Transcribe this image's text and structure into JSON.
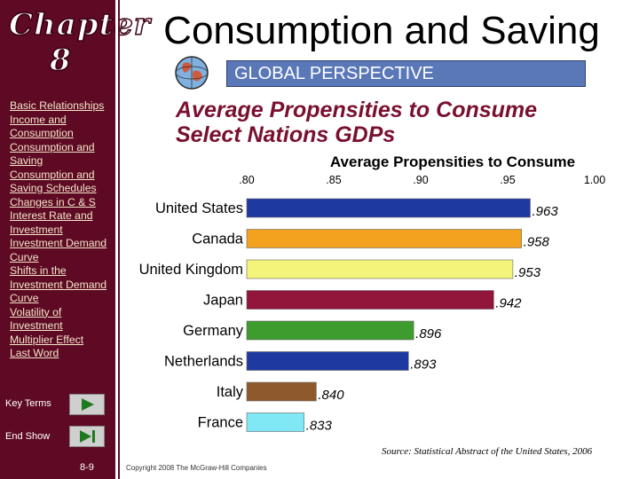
{
  "sidebar": {
    "chapter_word": "Chapter",
    "chapter_number": "8",
    "nav_items": [
      "Basic Relationships",
      "Income and Consumption",
      "Consumption and Saving",
      "Consumption and Saving Schedules",
      "Changes in C & S",
      "Interest Rate and Investment",
      "Investment Demand Curve",
      "Shifts in the Investment Demand Curve",
      "Volatility of Investment",
      "Multiplier Effect",
      "Last Word"
    ],
    "key_terms_label": "Key Terms",
    "end_show_label": "End Show",
    "page_number": "8-9"
  },
  "header": {
    "title": "Consumption and Saving",
    "banner": "GLOBAL PERSPECTIVE",
    "subtitle_line1": "Average Propensities to Consume",
    "subtitle_line2": "Select Nations GDPs"
  },
  "footer": {
    "source": "Source: Statistical Abstract of the United States, 2006",
    "copyright": "Copyright 2008 The McGraw-Hill Companies"
  },
  "colors": {
    "sidebar": "#5e0a24",
    "bars": [
      "#1e3aa0",
      "#f2a21e",
      "#f4f37a",
      "#92153c",
      "#3e9b2e",
      "#1e3aa0",
      "#8e5a2c",
      "#7fe8f4"
    ]
  },
  "chart_data": {
    "type": "bar",
    "orientation": "horizontal",
    "title": "Average Propensities to Consume",
    "categories": [
      "United States",
      "Canada",
      "United Kingdom",
      "Japan",
      "Germany",
      "Netherlands",
      "Italy",
      "France"
    ],
    "values": [
      0.963,
      0.958,
      0.953,
      0.942,
      0.896,
      0.893,
      0.84,
      0.833
    ],
    "value_labels": [
      ".963",
      ".958",
      ".953",
      ".942",
      ".896",
      ".893",
      ".840",
      ".833"
    ],
    "tick_values": [
      0.8,
      0.85,
      0.9,
      0.95,
      1.0
    ],
    "tick_labels": [
      ".80",
      ".85",
      ".90",
      ".95",
      "1.00"
    ],
    "xlim": [
      0.8,
      1.0
    ],
    "grid": false
  }
}
